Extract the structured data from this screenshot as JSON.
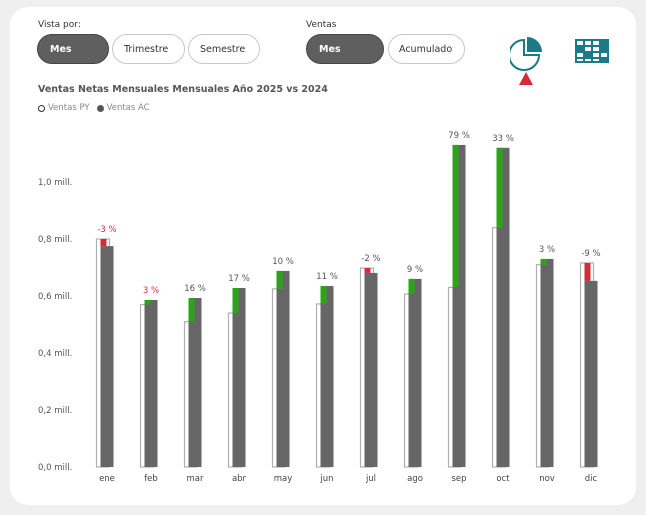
{
  "filters": {
    "vista": {
      "label": "Vista por:",
      "options": [
        "Mes",
        "Trimestre",
        "Semestre"
      ],
      "selected": "Mes"
    },
    "ventas": {
      "label": "Ventas",
      "options": [
        "Mes",
        "Acumulado"
      ],
      "selected": "Mes"
    }
  },
  "icons": {
    "pie": "pie-chart-icon",
    "table": "table-grid-icon",
    "indicator": "red-up-triangle-icon"
  },
  "colors": {
    "accent": "#1a7a86",
    "ac_bar": "#666666",
    "py_bar_border": "#b0b0b0",
    "positive": "#2ea21b",
    "negative": "#d42a3a",
    "selected_pill": "#5f5f5f"
  },
  "chart_data": {
    "type": "bar",
    "title": "Ventas Netas Mensuales Mensuales Año 2025 vs 2024",
    "legend": [
      "Ventas PY",
      "Ventas AC"
    ],
    "legend_position": "top-left",
    "xlabel": "",
    "ylabel": "",
    "ylim": [
      0,
      1.2
    ],
    "yticks": [
      0,
      0.2,
      0.4,
      0.6,
      0.8,
      1.0
    ],
    "ytick_labels": [
      "0,0 mill.",
      "0,2 mill.",
      "0,4 mill.",
      "0,6 mill.",
      "0,8 mill.",
      "1,0 mill."
    ],
    "categories": [
      "ene",
      "feb",
      "mar",
      "abr",
      "may",
      "jun",
      "jul",
      "ago",
      "sep",
      "oct",
      "nov",
      "dic"
    ],
    "series": [
      {
        "name": "Ventas PY",
        "values": [
          0.8,
          0.57,
          0.51,
          0.54,
          0.625,
          0.572,
          0.698,
          0.607,
          0.63,
          0.84,
          0.71,
          0.716
        ]
      },
      {
        "name": "Ventas AC",
        "values": [
          0.775,
          0.586,
          0.593,
          0.628,
          0.688,
          0.635,
          0.681,
          0.66,
          1.13,
          1.12,
          0.73,
          0.653
        ]
      }
    ],
    "data_labels": [
      "-3 %",
      "3 %",
      "16 %",
      "17 %",
      "10 %",
      "11 %",
      "-2 %",
      "9 %",
      "79 %",
      "33 %",
      "3 %",
      "-9 %"
    ],
    "data_label_colors": [
      "#d42a3a",
      "#d42a3a",
      "#555555",
      "#555555",
      "#555555",
      "#555555",
      "#555555",
      "#555555",
      "#555555",
      "#555555",
      "#555555",
      "#555555"
    ],
    "grid": false
  }
}
